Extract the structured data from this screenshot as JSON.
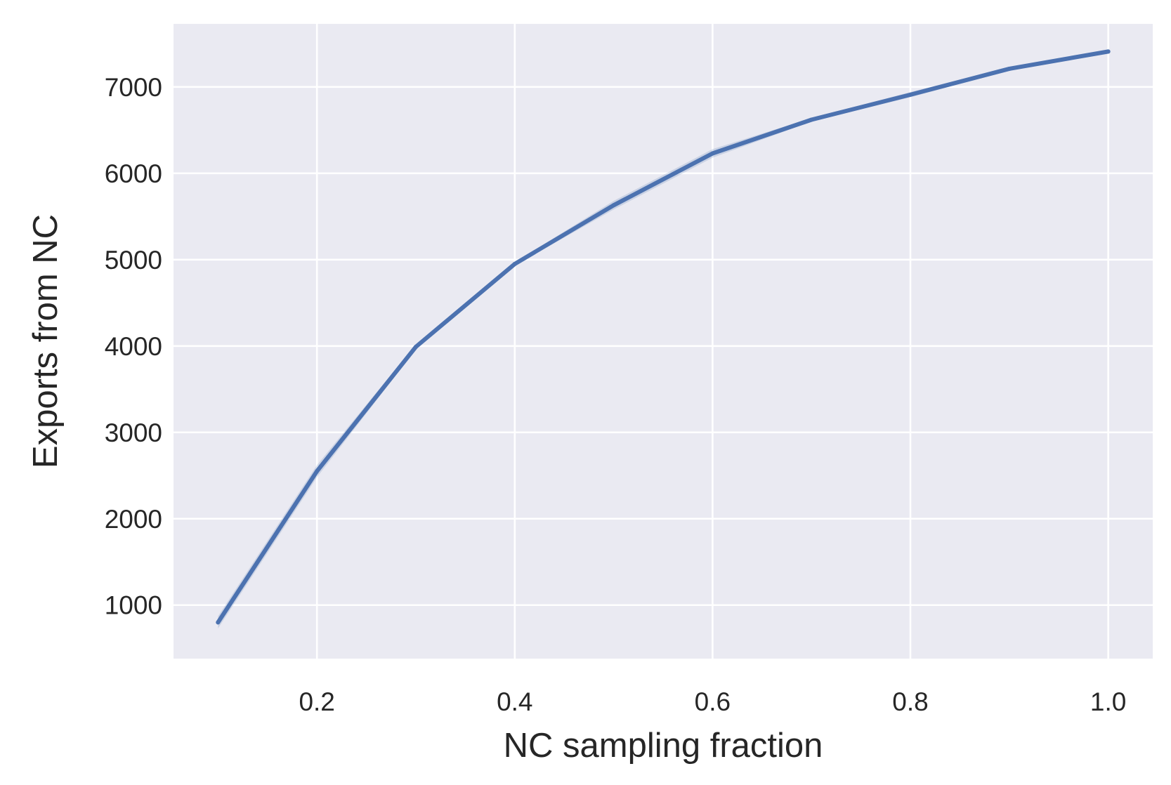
{
  "chart_data": {
    "type": "line",
    "title": "",
    "xlabel": "NC sampling fraction",
    "ylabel": "Exports from NC",
    "xlim": [
      0.055,
      1.045
    ],
    "ylim": [
      380,
      7730
    ],
    "xticks": [
      0.2,
      0.4,
      0.6,
      0.8,
      1.0
    ],
    "xtick_labels": [
      "0.2",
      "0.4",
      "0.6",
      "0.8",
      "1.0"
    ],
    "yticks": [
      1000,
      2000,
      3000,
      4000,
      5000,
      6000,
      7000
    ],
    "ytick_labels": [
      "1000",
      "2000",
      "3000",
      "4000",
      "5000",
      "6000",
      "7000"
    ],
    "grid": true,
    "legend": false,
    "series": [
      {
        "x": [
          0.1,
          0.2,
          0.3,
          0.4,
          0.5,
          0.6,
          0.7,
          0.8,
          0.9,
          1.0
        ],
        "values": [
          800,
          2550,
          3990,
          4950,
          5630,
          6230,
          6620,
          6910,
          7210,
          7410
        ],
        "ci_low": [
          730,
          2480,
          3960,
          4930,
          5580,
          6180,
          6600,
          6880,
          7190,
          7390
        ],
        "ci_high": [
          870,
          2620,
          4020,
          4970,
          5680,
          6280,
          6640,
          6940,
          7230,
          7430
        ],
        "color": "#4c72b0"
      }
    ],
    "colors": {
      "background": "#eaeaf2",
      "grid": "#ffffff",
      "line": "#4c72b0",
      "text": "#262626"
    }
  }
}
